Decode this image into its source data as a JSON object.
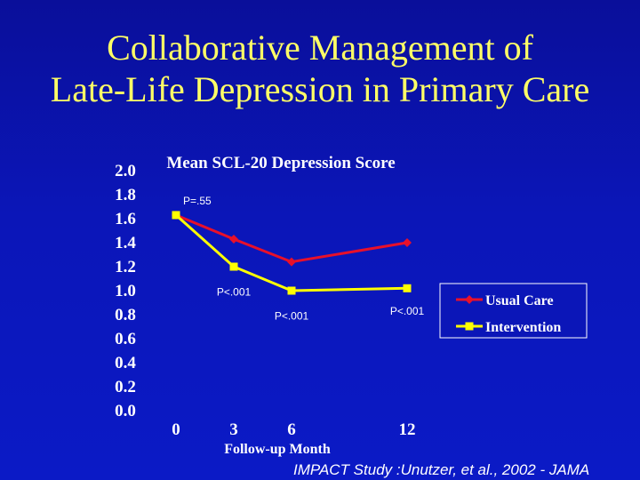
{
  "slide": {
    "title_line1": "Collaborative Management of",
    "title_line2": "Late-Life Depression in Primary Care",
    "citation": "IMPACT Study :Unutzer, et al., 2002 - JAMA"
  },
  "colors": {
    "background": "#0b16b8",
    "title": "#ffff66",
    "usual_care": "#e8102a",
    "intervention": "#ffff00",
    "text": "#ffffff"
  },
  "chart_data": {
    "type": "line",
    "title": "Mean SCL-20 Depression Score",
    "xlabel": "Follow-up Month",
    "ylabel": "",
    "x": [
      0,
      3,
      6,
      12
    ],
    "x_tick_labels": [
      "0",
      "3",
      "6",
      "12"
    ],
    "ylim": [
      0,
      2.0
    ],
    "y_ticks": [
      "0.0",
      "0.2",
      "0.4",
      "0.6",
      "0.8",
      "1.0",
      "1.2",
      "1.4",
      "1.6",
      "1.8",
      "2.0"
    ],
    "series": [
      {
        "name": "Usual Care",
        "color": "#e8102a",
        "marker": "diamond",
        "values": [
          1.63,
          1.43,
          1.24,
          1.4
        ]
      },
      {
        "name": "Intervention",
        "color": "#ffff00",
        "marker": "square",
        "values": [
          1.63,
          1.2,
          1.0,
          1.02
        ]
      }
    ],
    "annotations": [
      {
        "text": "P=.55",
        "x": 0,
        "y": 1.72
      },
      {
        "text": "P<.001",
        "x": 3,
        "y": 0.96
      },
      {
        "text": "P<.001",
        "x": 6,
        "y": 0.76
      },
      {
        "text": "P<.001",
        "x": 12,
        "y": 0.8
      }
    ],
    "legend": "right",
    "grid": false
  }
}
